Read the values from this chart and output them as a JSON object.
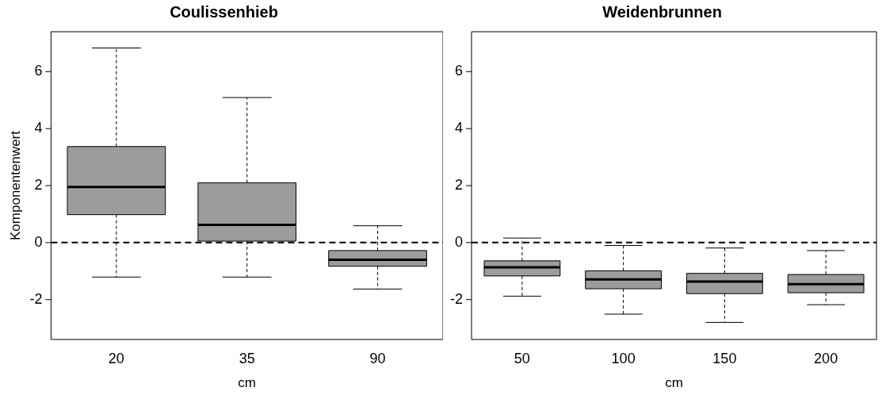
{
  "chart_data": [
    {
      "type": "box",
      "title": "Coulissenhieb",
      "xlabel": "cm",
      "ylabel": "Komponentenwert",
      "categories": [
        "20",
        "35",
        "90"
      ],
      "color": "#9c9c9c",
      "ylim": [
        -3.4,
        7.4
      ],
      "yticks": [
        -2,
        0,
        2,
        4,
        6
      ],
      "grid": false,
      "legend": false,
      "boxes": [
        {
          "low": -1.21,
          "q1": 0.98,
          "median": 1.95,
          "q3": 3.37,
          "high": 6.83
        },
        {
          "low": -1.21,
          "q1": 0.05,
          "median": 0.62,
          "q3": 2.1,
          "high": 5.09
        },
        {
          "low": -1.63,
          "q1": -0.83,
          "median": -0.6,
          "q3": -0.28,
          "high": 0.59
        }
      ],
      "ref_lines": [
        {
          "axis": "y",
          "value": 0,
          "line_style": "dashed",
          "color": "#000000"
        }
      ]
    },
    {
      "type": "box",
      "title": "Weidenbrunnen",
      "xlabel": "cm",
      "categories": [
        "50",
        "100",
        "150",
        "200"
      ],
      "color": "#9c9c9c",
      "ylim": [
        -3.4,
        7.4
      ],
      "yticks": [
        -2,
        0,
        2,
        4,
        6
      ],
      "grid": false,
      "legend": false,
      "boxes": [
        {
          "low": -1.88,
          "q1": -1.17,
          "median": -0.87,
          "q3": -0.64,
          "high": 0.16
        },
        {
          "low": -2.51,
          "q1": -1.62,
          "median": -1.29,
          "q3": -0.99,
          "high": -0.1
        },
        {
          "low": -2.8,
          "q1": -1.79,
          "median": -1.37,
          "q3": -1.08,
          "high": -0.19
        },
        {
          "low": -2.18,
          "q1": -1.76,
          "median": -1.46,
          "q3": -1.12,
          "high": -0.28
        }
      ],
      "ref_lines": [
        {
          "axis": "y",
          "value": 0,
          "line_style": "dashed",
          "color": "#000000"
        }
      ]
    }
  ]
}
